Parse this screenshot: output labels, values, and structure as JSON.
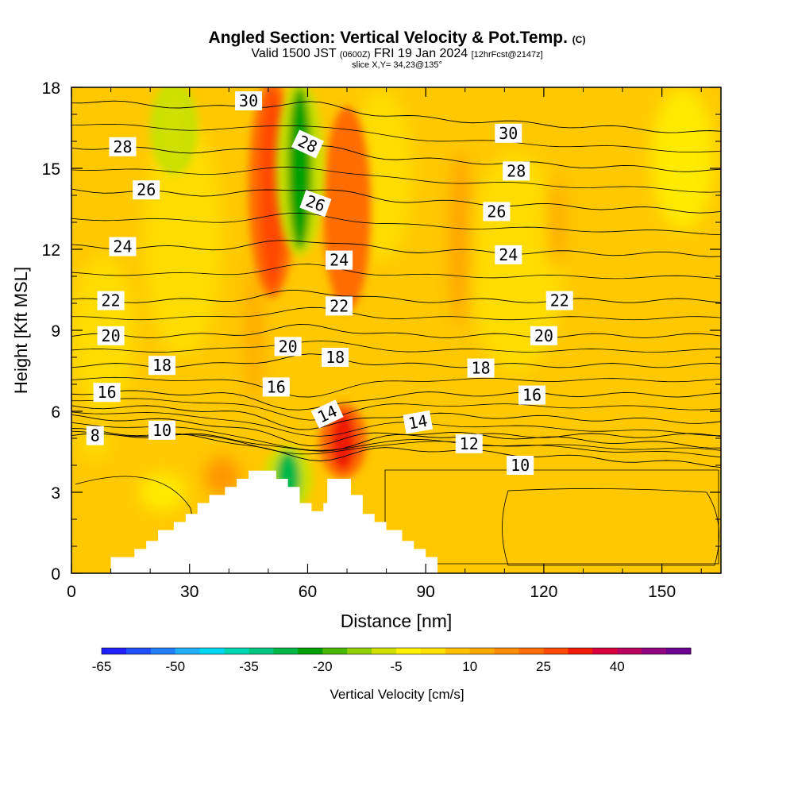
{
  "header": {
    "title": "Angled Section: Vertical Velocity & Pot.Temp.",
    "title_unit": "(C)",
    "valid_main": "Valid 1500 JST",
    "valid_z": "(0600Z)",
    "valid_date": "FRI 19 Jan 2024",
    "fcst": "[12hrFcst@2147z]",
    "slice": "slice X,Y= 34,23@135°"
  },
  "chart_data": {
    "type": "heatmap",
    "xlabel": "Distance [nm]",
    "ylabel": "Height [Kft MSL]",
    "xlim": [
      0,
      165
    ],
    "ylim": [
      0,
      18
    ],
    "x_ticks": [
      0,
      30,
      60,
      90,
      120,
      150
    ],
    "y_ticks": [
      0,
      3,
      6,
      9,
      12,
      15,
      18
    ],
    "terrain": [
      [
        10,
        0.3
      ],
      [
        10,
        0.6
      ],
      [
        16,
        0.6
      ],
      [
        16,
        0.9
      ],
      [
        19,
        0.9
      ],
      [
        19,
        1.2
      ],
      [
        22,
        1.2
      ],
      [
        22,
        1.6
      ],
      [
        26,
        1.6
      ],
      [
        26,
        1.9
      ],
      [
        29,
        1.9
      ],
      [
        29,
        2.2
      ],
      [
        32,
        2.2
      ],
      [
        32,
        2.6
      ],
      [
        35,
        2.6
      ],
      [
        35,
        2.9
      ],
      [
        39,
        2.9
      ],
      [
        39,
        3.2
      ],
      [
        42,
        3.2
      ],
      [
        42,
        3.5
      ],
      [
        45,
        3.5
      ],
      [
        45,
        3.8
      ],
      [
        52,
        3.8
      ],
      [
        52,
        3.5
      ],
      [
        55,
        3.5
      ],
      [
        55,
        3.2
      ],
      [
        58,
        3.2
      ],
      [
        58,
        2.6
      ],
      [
        61,
        2.6
      ],
      [
        61,
        2.3
      ],
      [
        64,
        2.3
      ],
      [
        64,
        2.6
      ],
      [
        65,
        2.6
      ],
      [
        65,
        3.5
      ],
      [
        71,
        3.5
      ],
      [
        71,
        2.9
      ],
      [
        74,
        2.9
      ],
      [
        74,
        2.2
      ],
      [
        77,
        2.2
      ],
      [
        77,
        1.9
      ],
      [
        80,
        1.9
      ],
      [
        80,
        1.6
      ],
      [
        84,
        1.6
      ],
      [
        84,
        1.2
      ],
      [
        87,
        1.2
      ],
      [
        87,
        0.9
      ],
      [
        90,
        0.9
      ],
      [
        90,
        0.6
      ],
      [
        93,
        0.6
      ],
      [
        93,
        0.3
      ]
    ],
    "updrafts": [
      {
        "x": 51,
        "ybottom": 10.5,
        "ytop": 18,
        "value": 25
      },
      {
        "x": 69,
        "ybottom": 3.8,
        "ytop": 6.0,
        "value": 30
      },
      {
        "x": 70,
        "ybottom": 10.0,
        "ytop": 17.0,
        "value": 20
      }
    ],
    "downdrafts": [
      {
        "x": 58,
        "ybottom": 12.0,
        "ytop": 18,
        "value": -25
      },
      {
        "x": 55,
        "ybottom": 2.5,
        "ytop": 4.5,
        "value": -28
      },
      {
        "x": 26,
        "ybottom": 15.0,
        "ytop": 18,
        "value": -12
      }
    ],
    "isentropes": [
      {
        "value": 8,
        "yleft": 5.1,
        "yright": 5.1
      },
      {
        "value": 10,
        "yleft": 5.3,
        "yright": 4.0
      },
      {
        "value": 12,
        "yleft": 5.8,
        "yright": 4.7
      },
      {
        "value": 14,
        "yleft": 6.2,
        "yright": 5.6
      },
      {
        "value": 16,
        "yleft": 6.7,
        "yright": 6.6
      },
      {
        "value": 18,
        "yleft": 7.7,
        "yright": 7.7
      },
      {
        "value": 20,
        "yleft": 8.8,
        "yright": 8.8
      },
      {
        "value": 22,
        "yleft": 10.1,
        "yright": 10.1
      },
      {
        "value": 24,
        "yleft": 12.1,
        "yright": 11.8
      },
      {
        "value": 26,
        "yleft": 14.2,
        "yright": 13.4
      },
      {
        "value": 28,
        "yleft": 15.8,
        "yright": 14.9
      },
      {
        "value": 30,
        "yleft": 17.5,
        "yright": 16.3
      }
    ],
    "contour_labels": [
      {
        "text": "8",
        "x": 6,
        "y": 5.1,
        "angle": 0
      },
      {
        "text": "10",
        "x": 23,
        "y": 5.3,
        "angle": 0
      },
      {
        "text": "16",
        "x": 9,
        "y": 6.7,
        "angle": 0
      },
      {
        "text": "18",
        "x": 23,
        "y": 7.7,
        "angle": 0
      },
      {
        "text": "20",
        "x": 10,
        "y": 8.8,
        "angle": 0
      },
      {
        "text": "22",
        "x": 10,
        "y": 10.1,
        "angle": 0
      },
      {
        "text": "24",
        "x": 13,
        "y": 12.1,
        "angle": 0
      },
      {
        "text": "26",
        "x": 19,
        "y": 14.2,
        "angle": 0
      },
      {
        "text": "28",
        "x": 13,
        "y": 15.8,
        "angle": 0
      },
      {
        "text": "30",
        "x": 45,
        "y": 17.5,
        "angle": 0
      },
      {
        "text": "28",
        "x": 60,
        "y": 15.9,
        "angle": 25
      },
      {
        "text": "26",
        "x": 62,
        "y": 13.7,
        "angle": 20
      },
      {
        "text": "24",
        "x": 68,
        "y": 11.6,
        "angle": 0
      },
      {
        "text": "22",
        "x": 68,
        "y": 9.9,
        "angle": 0
      },
      {
        "text": "20",
        "x": 55,
        "y": 8.4,
        "angle": 0
      },
      {
        "text": "18",
        "x": 67,
        "y": 8.0,
        "angle": 0
      },
      {
        "text": "16",
        "x": 52,
        "y": 6.9,
        "angle": 0
      },
      {
        "text": "14",
        "x": 65,
        "y": 5.9,
        "angle": -25
      },
      {
        "text": "14",
        "x": 88,
        "y": 5.6,
        "angle": -10
      },
      {
        "text": "12",
        "x": 101,
        "y": 4.8,
        "angle": 0
      },
      {
        "text": "10",
        "x": 114,
        "y": 4.0,
        "angle": 0
      },
      {
        "text": "18",
        "x": 104,
        "y": 7.6,
        "angle": 0
      },
      {
        "text": "16",
        "x": 117,
        "y": 6.6,
        "angle": 0
      },
      {
        "text": "20",
        "x": 120,
        "y": 8.8,
        "angle": 0
      },
      {
        "text": "22",
        "x": 124,
        "y": 10.1,
        "angle": 0
      },
      {
        "text": "24",
        "x": 111,
        "y": 11.8,
        "angle": 0
      },
      {
        "text": "26",
        "x": 108,
        "y": 13.4,
        "angle": 0
      },
      {
        "text": "28",
        "x": 113,
        "y": 14.9,
        "angle": 0
      },
      {
        "text": "30",
        "x": 111,
        "y": 16.3,
        "angle": 0
      }
    ],
    "colorbar": {
      "label": "Vertical Velocity [cm/s]",
      "ticks": [
        "-65",
        "-50",
        "-35",
        "-20",
        "-5",
        "10",
        "25",
        "40"
      ],
      "colors": [
        "#1f1fff",
        "#1f4fff",
        "#1f7fff",
        "#1fafff",
        "#00d8ef",
        "#00d6b0",
        "#00c880",
        "#00b846",
        "#00a000",
        "#48b800",
        "#90d000",
        "#d0e000",
        "#fff000",
        "#ffe000",
        "#ffc000",
        "#ffa800",
        "#ff8c00",
        "#ff6c00",
        "#ff4a00",
        "#f01a00",
        "#d8003c",
        "#b8005c",
        "#900080",
        "#6c0090"
      ]
    }
  }
}
